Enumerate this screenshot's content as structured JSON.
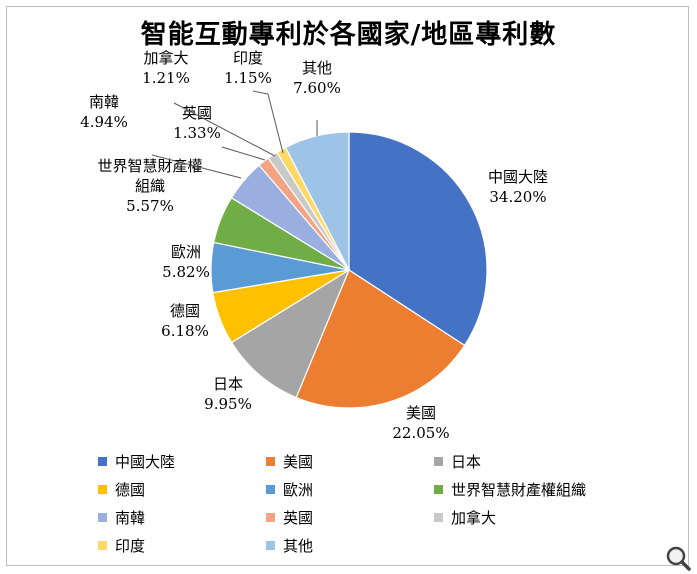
{
  "chart_data": {
    "type": "pie",
    "title": "智能互動專利於各國家/地區專利數",
    "slices": [
      {
        "label_lines": [
          "中國大陸"
        ],
        "legend": "中國大陸",
        "value": 34.2,
        "pct": "34.20%",
        "color": "#4472c4"
      },
      {
        "label_lines": [
          "美國"
        ],
        "legend": "美國",
        "value": 22.05,
        "pct": "22.05%",
        "color": "#ed7d31"
      },
      {
        "label_lines": [
          "日本"
        ],
        "legend": "日本",
        "value": 9.95,
        "pct": "9.95%",
        "color": "#a5a5a5"
      },
      {
        "label_lines": [
          "德國"
        ],
        "legend": "德國",
        "value": 6.18,
        "pct": "6.18%",
        "color": "#ffc000"
      },
      {
        "label_lines": [
          "歐洲"
        ],
        "legend": "歐洲",
        "value": 5.82,
        "pct": "5.82%",
        "color": "#5b9bd5"
      },
      {
        "label_lines": [
          "世界智慧財產權",
          "組織"
        ],
        "legend": "世界智慧財產權組織",
        "value": 5.57,
        "pct": "5.57%",
        "color": "#70ad47"
      },
      {
        "label_lines": [
          "南韓"
        ],
        "legend": "南韓",
        "value": 4.94,
        "pct": "4.94%",
        "color": "#9aaee0"
      },
      {
        "label_lines": [
          "英國"
        ],
        "legend": "英國",
        "value": 1.33,
        "pct": "1.33%",
        "color": "#f4a484"
      },
      {
        "label_lines": [
          "加拿大"
        ],
        "legend": "加拿大",
        "value": 1.21,
        "pct": "1.21%",
        "color": "#c9c9c9"
      },
      {
        "label_lines": [
          "印度"
        ],
        "legend": "印度",
        "value": 1.15,
        "pct": "1.15%",
        "color": "#ffd966"
      },
      {
        "label_lines": [
          "其他"
        ],
        "legend": "其他",
        "value": 7.6,
        "pct": "7.60%",
        "color": "#9dc3e6"
      }
    ],
    "legend_position": "bottom"
  },
  "icons": {
    "zoom": "magnifier-icon"
  }
}
